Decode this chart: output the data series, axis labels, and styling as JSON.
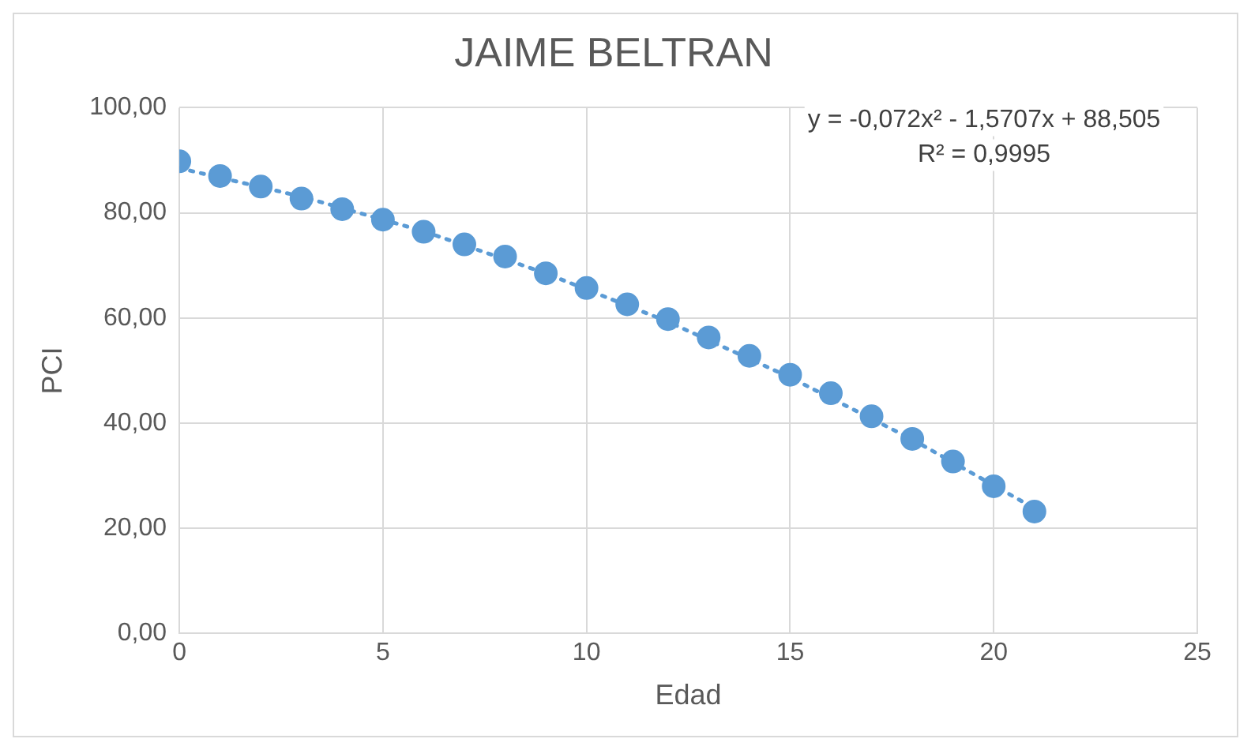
{
  "chart_data": {
    "type": "scatter",
    "title": "JAIME BELTRAN",
    "xlabel": "Edad",
    "ylabel": "PCI",
    "x": [
      0,
      1,
      2,
      3,
      4,
      5,
      6,
      7,
      8,
      9,
      10,
      11,
      12,
      13,
      14,
      15,
      16,
      17,
      18,
      19,
      20,
      21
    ],
    "series": [
      {
        "color": "#5b9bd5",
        "marker": "circle",
        "values": [
          89.8,
          87.0,
          85.0,
          82.7,
          80.7,
          78.7,
          76.4,
          74.0,
          71.7,
          68.5,
          65.7,
          62.6,
          59.8,
          56.3,
          52.8,
          49.2,
          45.7,
          41.3,
          37.0,
          32.7,
          28.0,
          23.2
        ]
      },
      {
        "type": "line",
        "color": "#5b9bd5",
        "line_style": "dotted",
        "marker": "none",
        "x": [
          0,
          3,
          6,
          9,
          12,
          15,
          18,
          21
        ],
        "values": [
          88.5,
          83.1,
          76.5,
          68.5,
          59.3,
          48.7,
          36.9,
          23.8
        ]
      }
    ],
    "xlim": [
      0,
      25
    ],
    "xticks": [
      0,
      5,
      10,
      15,
      20,
      25
    ],
    "ylim": [
      0,
      100
    ],
    "yticks": [
      {
        "value": 0,
        "label": "0,00"
      },
      {
        "value": 20,
        "label": "20,00"
      },
      {
        "value": 40,
        "label": "40,00"
      },
      {
        "value": 60,
        "label": "60,00"
      },
      {
        "value": 80,
        "label": "80,00"
      },
      {
        "value": 100,
        "label": "100,00"
      }
    ],
    "grid": true,
    "legend": false,
    "annotations": [
      "y = -0,072x² - 1,5707x + 88,505",
      "R² = 0,9995"
    ]
  }
}
